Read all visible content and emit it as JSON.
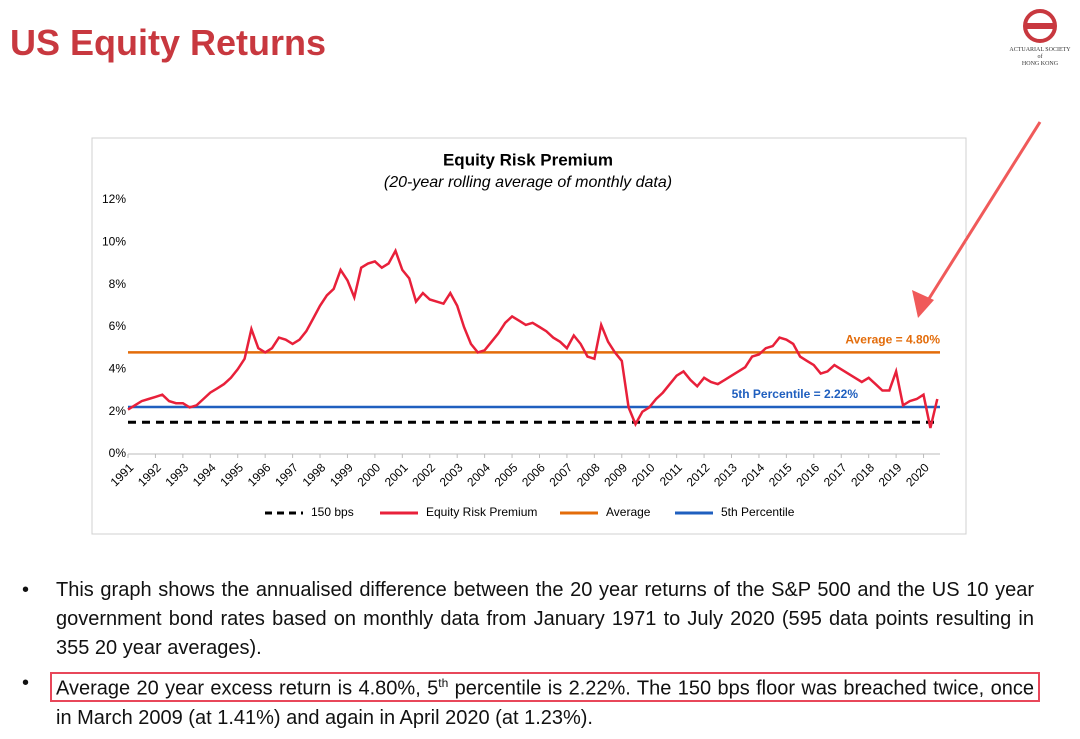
{
  "header": {
    "title": "US Equity Returns",
    "logo_lines": [
      "ACTUARIAL SOCIETY",
      "of",
      "HONG KONG"
    ]
  },
  "chart_data": {
    "type": "line",
    "title": "Equity Risk Premium",
    "subtitle": "(20-year rolling average of monthly data)",
    "xlim": [
      1991,
      2020.6
    ],
    "xticks": [
      1991,
      1992,
      1993,
      1994,
      1995,
      1996,
      1997,
      1998,
      1999,
      2000,
      2001,
      2002,
      2003,
      2004,
      2005,
      2006,
      2007,
      2008,
      2009,
      2010,
      2011,
      2012,
      2013,
      2014,
      2015,
      2016,
      2017,
      2018,
      2019,
      2020
    ],
    "ylim": [
      0,
      12
    ],
    "yticks": [
      {
        "value": 0,
        "label": "0%"
      },
      {
        "value": 2,
        "label": "2%"
      },
      {
        "value": 4,
        "label": "4%"
      },
      {
        "value": 6,
        "label": "6%"
      },
      {
        "value": 8,
        "label": "8%"
      },
      {
        "value": 10,
        "label": "10%"
      },
      {
        "value": 12,
        "label": "12%"
      }
    ],
    "legend": "bottom",
    "series": [
      {
        "name": "150 bps",
        "color": "#000000",
        "dash": true,
        "x": [
          1991,
          2020.6
        ],
        "values": [
          1.5,
          1.5
        ]
      },
      {
        "name": "Equity Risk Premium",
        "color": "#e8203a",
        "x": [
          1991,
          1991.25,
          1991.5,
          1991.75,
          1992,
          1992.25,
          1992.5,
          1992.75,
          1993,
          1993.25,
          1993.5,
          1993.75,
          1994,
          1994.25,
          1994.5,
          1994.75,
          1995,
          1995.25,
          1995.5,
          1995.75,
          1996,
          1996.25,
          1996.5,
          1996.75,
          1997,
          1997.25,
          1997.5,
          1997.75,
          1998,
          1998.25,
          1998.5,
          1998.75,
          1999,
          1999.25,
          1999.5,
          1999.75,
          2000,
          2000.25,
          2000.5,
          2000.75,
          2001,
          2001.25,
          2001.5,
          2001.75,
          2002,
          2002.25,
          2002.5,
          2002.75,
          2003,
          2003.25,
          2003.5,
          2003.75,
          2004,
          2004.25,
          2004.5,
          2004.75,
          2005,
          2005.25,
          2005.5,
          2005.75,
          2006,
          2006.25,
          2006.5,
          2006.75,
          2007,
          2007.25,
          2007.5,
          2007.75,
          2008,
          2008.25,
          2008.5,
          2008.75,
          2009,
          2009.25,
          2009.5,
          2009.75,
          2010,
          2010.25,
          2010.5,
          2010.75,
          2011,
          2011.25,
          2011.5,
          2011.75,
          2012,
          2012.25,
          2012.5,
          2012.75,
          2013,
          2013.25,
          2013.5,
          2013.75,
          2014,
          2014.25,
          2014.5,
          2014.75,
          2015,
          2015.25,
          2015.5,
          2015.75,
          2016,
          2016.25,
          2016.5,
          2016.75,
          2017,
          2017.25,
          2017.5,
          2017.75,
          2018,
          2018.25,
          2018.5,
          2018.75,
          2019,
          2019.25,
          2019.5,
          2019.75,
          2020,
          2020.25,
          2020.5
        ],
        "values": [
          2.1,
          2.3,
          2.5,
          2.6,
          2.7,
          2.8,
          2.5,
          2.4,
          2.4,
          2.2,
          2.3,
          2.6,
          2.9,
          3.1,
          3.3,
          3.6,
          4.0,
          4.5,
          5.9,
          5.0,
          4.8,
          5.0,
          5.5,
          5.4,
          5.2,
          5.4,
          5.8,
          6.4,
          7.0,
          7.5,
          7.8,
          8.7,
          8.2,
          7.4,
          8.8,
          9.0,
          9.1,
          8.8,
          9.0,
          9.6,
          8.7,
          8.3,
          7.2,
          7.6,
          7.3,
          7.2,
          7.1,
          7.6,
          7.0,
          6.0,
          5.2,
          4.8,
          4.9,
          5.3,
          5.7,
          6.2,
          6.5,
          6.3,
          6.1,
          6.2,
          6.0,
          5.8,
          5.5,
          5.3,
          5.0,
          5.6,
          5.2,
          4.6,
          4.5,
          6.1,
          5.3,
          4.8,
          4.4,
          2.2,
          1.41,
          2.0,
          2.2,
          2.6,
          2.9,
          3.3,
          3.7,
          3.9,
          3.5,
          3.2,
          3.6,
          3.4,
          3.3,
          3.5,
          3.7,
          3.9,
          4.1,
          4.6,
          4.7,
          5.0,
          5.1,
          5.5,
          5.4,
          5.2,
          4.6,
          4.4,
          4.2,
          3.8,
          3.9,
          4.2,
          4.0,
          3.8,
          3.6,
          3.4,
          3.6,
          3.3,
          3.0,
          3.0,
          3.9,
          2.3,
          2.5,
          2.6,
          2.8,
          1.23,
          2.6
        ]
      },
      {
        "name": "Average",
        "color": "#e36c0a",
        "x": [
          1991,
          2020.6
        ],
        "values": [
          4.8,
          4.8
        ]
      },
      {
        "name": "5th Percentile",
        "color": "#1f5fbf",
        "x": [
          1991,
          2020.6
        ],
        "values": [
          2.22,
          2.22
        ]
      }
    ],
    "annotations": [
      "Average = 4.80%",
      "5th Percentile = 2.22%"
    ]
  },
  "bullets": [
    {
      "parts": [
        "This graph shows the annualised difference between the 20 year returns of the S&P 500 and the US 10 year government bond rates based on monthly data from January 1971 to July 2020 (595 data points resulting in 355 20 year averages)."
      ]
    },
    {
      "parts": [
        "Average 20 year excess return is 4.80%, 5",
        "th",
        " percentile is 2.22%. The 150 bps floor was breached twice, once in March 2009 (at 1.41%) and again in April 2020 (at 1.23%)."
      ]
    }
  ]
}
